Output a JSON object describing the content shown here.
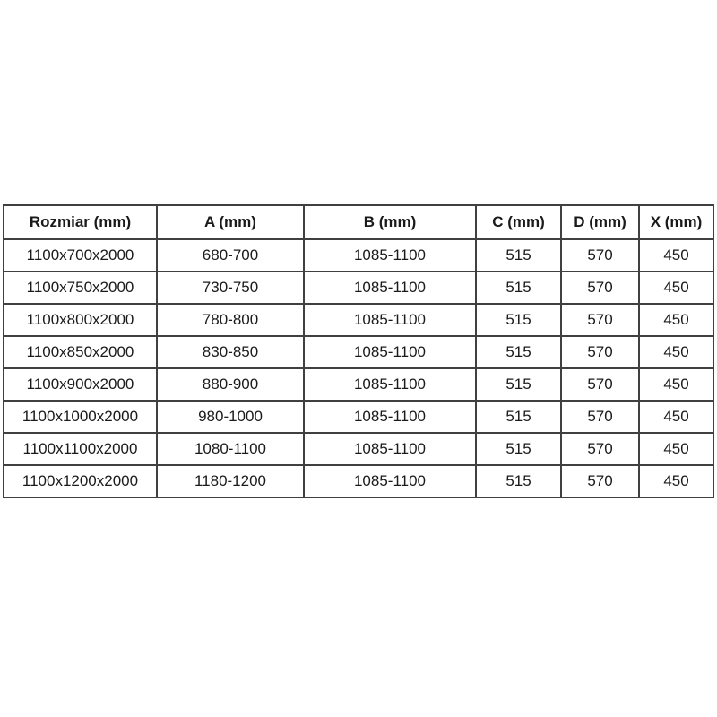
{
  "page": {
    "background_color": "#ffffff"
  },
  "table": {
    "colors": {
      "border": "#404040",
      "text": "#1a1a1a",
      "background": "#ffffff"
    },
    "headers": [
      "Rozmiar (mm)",
      "A (mm)",
      "B (mm)",
      "C (mm)",
      "D (mm)",
      "X (mm)"
    ],
    "rows": [
      [
        "1100x700x2000",
        "680-700",
        "1085-1100",
        "515",
        "570",
        "450"
      ],
      [
        "1100x750x2000",
        "730-750",
        "1085-1100",
        "515",
        "570",
        "450"
      ],
      [
        "1100x800x2000",
        "780-800",
        "1085-1100",
        "515",
        "570",
        "450"
      ],
      [
        "1100x850x2000",
        "830-850",
        "1085-1100",
        "515",
        "570",
        "450"
      ],
      [
        "1100x900x2000",
        "880-900",
        "1085-1100",
        "515",
        "570",
        "450"
      ],
      [
        "1100x1000x2000",
        "980-1000",
        "1085-1100",
        "515",
        "570",
        "450"
      ],
      [
        "1100x1100x2000",
        "1080-1100",
        "1085-1100",
        "515",
        "570",
        "450"
      ],
      [
        "1100x1200x2000",
        "1180-1200",
        "1085-1100",
        "515",
        "570",
        "450"
      ]
    ]
  }
}
